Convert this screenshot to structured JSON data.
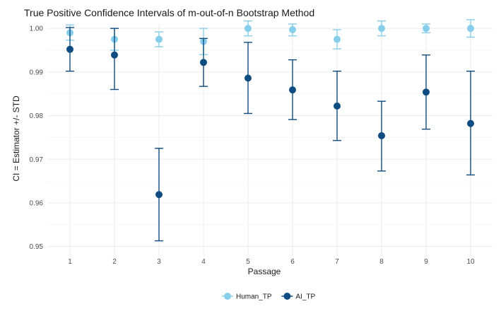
{
  "chart_data": {
    "type": "scatter",
    "title": "True Positive Confidence Intervals of m-out-of-n Bootstrap Method",
    "xlabel": "Passage",
    "ylabel": "CI = Estimator +/- STD",
    "categories": [
      "1",
      "2",
      "3",
      "4",
      "5",
      "6",
      "7",
      "8",
      "9",
      "10"
    ],
    "ylim": [
      0.948,
      1.001
    ],
    "yticks": [
      0.95,
      0.96,
      0.97,
      0.98,
      0.99,
      1.0
    ],
    "ytick_labels": [
      "0.95",
      "0.96",
      "0.97",
      "0.98",
      "0.99",
      "1.00"
    ],
    "grid": true,
    "legend_position": "bottom",
    "series": [
      {
        "name": "Human_TP",
        "color": "#87CEEB",
        "values": [
          0.999,
          0.9975,
          0.9975,
          0.997,
          1.0,
          0.9997,
          0.9975,
          1.0,
          1.0,
          1.0
        ],
        "lower": [
          0.9973,
          0.995,
          0.9958,
          0.994,
          0.9983,
          0.9983,
          0.9953,
          0.9983,
          0.999,
          0.998
        ],
        "upper": [
          1.0008,
          1.0,
          0.9992,
          1.0,
          1.0017,
          1.001,
          0.9997,
          1.0017,
          1.001,
          1.002
        ]
      },
      {
        "name": "AI_TP",
        "color": "#0F4C81",
        "values": [
          0.9952,
          0.9939,
          0.9619,
          0.9922,
          0.9886,
          0.9859,
          0.9822,
          0.9754,
          0.9854,
          0.9782
        ],
        "lower": [
          0.9902,
          0.986,
          0.9513,
          0.9867,
          0.9805,
          0.9791,
          0.9743,
          0.9673,
          0.9769,
          0.9664
        ],
        "upper": [
          1.0002,
          1.0,
          0.9725,
          0.9977,
          0.9968,
          0.9928,
          0.9902,
          0.9833,
          0.9939,
          0.9902
        ]
      }
    ]
  }
}
